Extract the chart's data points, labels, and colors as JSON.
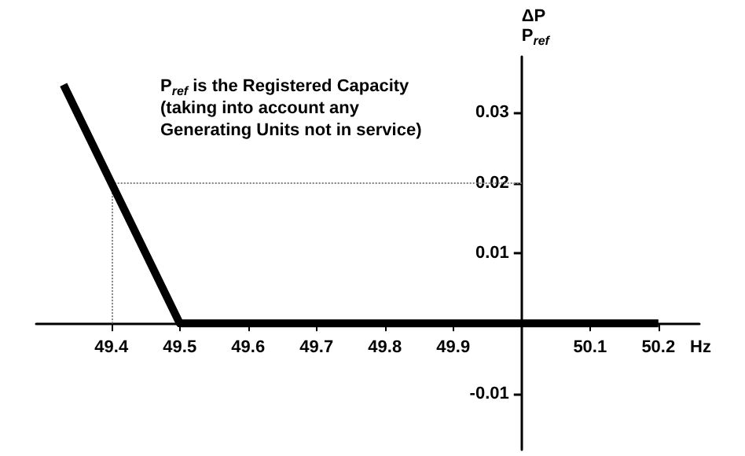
{
  "chart_data": {
    "type": "line",
    "xlabel": "Hz",
    "ylabel": "ΔP\nP$_{ref}$",
    "annotations": [
      "P$_{ref}$ is the Registered Capacity\n(taking into account any\nGenerating Units not in service)"
    ],
    "x": [
      49.33,
      49.5,
      50.2
    ],
    "series": [
      {
        "color": "#000000",
        "values": [
          0.034,
          0,
          0
        ]
      }
    ],
    "xlim": [
      49.29,
      50.26
    ],
    "ylim": [
      -0.018,
      0.038
    ],
    "xticks": [
      49.4,
      49.5,
      49.6,
      49.7,
      49.8,
      49.9,
      {
        "value": 50,
        "label": null
      },
      50.1,
      50.2
    ],
    "yticks": [
      -0.01,
      0.01,
      0.02,
      0.03
    ],
    "ref_lines": [
      {
        "axis": "x",
        "value": 49.4,
        "color": "#808080",
        "line_style": "dotted"
      },
      {
        "axis": "y",
        "value": 0.02,
        "color": "#808080",
        "line_style": "dotted"
      }
    ],
    "grid": false,
    "marker": "none",
    "line_style": "solid"
  }
}
